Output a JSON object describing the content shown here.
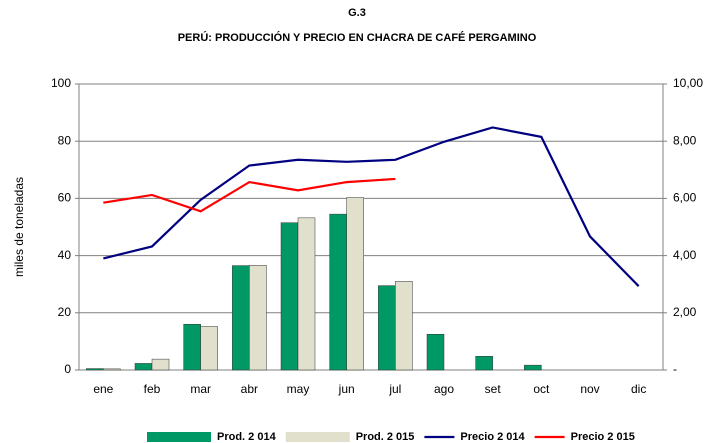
{
  "chart_data": {
    "type": "combo",
    "title": "G.3",
    "subtitle": "PERÚ: PRODUCCIÓN Y PRECIO EN CHACRA DE CAFÉ PERGAMINO",
    "ylabel": "miles de toneladas",
    "categories": [
      "ene",
      "feb",
      "mar",
      "abr",
      "may",
      "jun",
      "jul",
      "ago",
      "set",
      "oct",
      "nov",
      "dic"
    ],
    "ylim": [
      0,
      100
    ],
    "yticks": [
      0,
      20,
      40,
      60,
      80,
      100
    ],
    "y2lim": [
      0,
      10
    ],
    "y2ticks": [
      {
        "value": 0,
        "label": "-"
      },
      {
        "value": 2,
        "label": "2,00"
      },
      {
        "value": 4,
        "label": "4,00"
      },
      {
        "value": 6,
        "label": "6,00"
      },
      {
        "value": 8,
        "label": "8,00"
      },
      {
        "value": 10,
        "label": "10,00"
      }
    ],
    "grid": true,
    "legend": "bottom",
    "series": [
      {
        "name": "Prod. 2 014",
        "type": "bar",
        "color": "#009966",
        "values": [
          0.5,
          2.3,
          16,
          36.5,
          51.5,
          54.5,
          29.5,
          12.5,
          4.8,
          1.7,
          null,
          null
        ]
      },
      {
        "name": "Prod. 2 015",
        "type": "bar",
        "color": "#e0e0cc",
        "values": [
          0.4,
          3.8,
          15.2,
          36.6,
          53.2,
          60.3,
          31,
          null,
          null,
          null,
          null,
          null
        ]
      },
      {
        "name": "Precio 2 014",
        "type": "line",
        "axis": "y2",
        "color": "#000080",
        "values": [
          3.9,
          4.32,
          5.95,
          7.15,
          7.35,
          7.28,
          7.35,
          7.98,
          8.48,
          8.15,
          4.67,
          2.93
        ]
      },
      {
        "name": "Precio 2 015",
        "type": "line",
        "axis": "y2",
        "color": "#ff0000",
        "values": [
          5.85,
          6.12,
          5.55,
          6.57,
          6.28,
          6.57,
          6.68,
          null,
          null,
          null,
          null,
          null
        ]
      }
    ]
  }
}
